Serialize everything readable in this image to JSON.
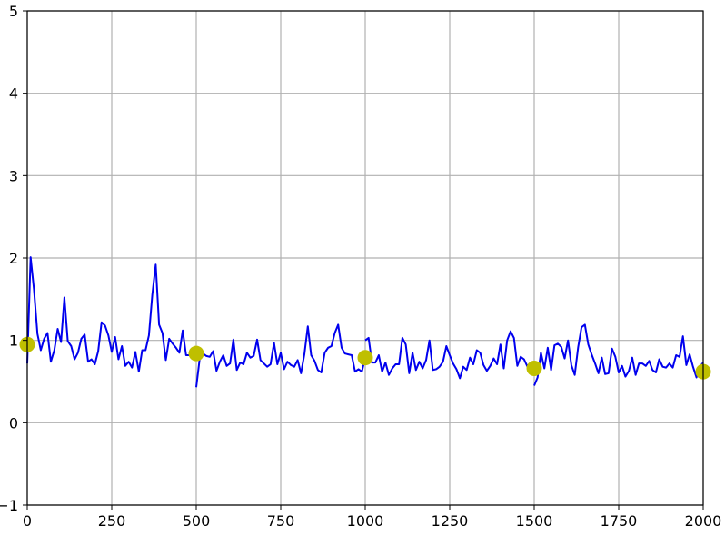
{
  "chart_data": {
    "type": "line",
    "title": "",
    "xlabel": "",
    "ylabel": "",
    "xlim": [
      0,
      2000
    ],
    "ylim": [
      -1,
      5
    ],
    "grid": true,
    "x_ticks": [
      "0",
      "250",
      "500",
      "750",
      "1000",
      "1250",
      "1500",
      "1750",
      "2000"
    ],
    "y_ticks": [
      "−1",
      "0",
      "1",
      "2",
      "3",
      "4",
      "5"
    ],
    "line_color": "#0000ee",
    "marker_color": "#bfbf00",
    "series": [
      {
        "x": [
          0,
          10,
          20,
          30,
          40,
          50,
          60,
          70,
          80,
          90,
          100,
          110,
          120,
          130,
          140,
          150,
          160,
          170,
          180,
          190,
          200,
          210,
          220,
          230,
          240,
          250,
          260,
          270,
          280,
          290,
          300,
          310,
          320,
          330,
          340,
          350,
          360,
          370,
          380,
          390,
          400,
          410,
          420,
          430,
          440,
          450,
          460,
          470,
          480,
          490,
          500
        ],
        "y": [
          0.72,
          2.01,
          1.62,
          1.08,
          0.88,
          1.02,
          1.09,
          0.74,
          0.88,
          1.14,
          0.98,
          1.52,
          0.99,
          0.93,
          0.77,
          0.85,
          1.02,
          1.07,
          0.74,
          0.77,
          0.71,
          0.87,
          1.22,
          1.18,
          1.06,
          0.86,
          1.04,
          0.77,
          0.93,
          0.69,
          0.74,
          0.67,
          0.86,
          0.62,
          0.88,
          0.88,
          1.06,
          1.55,
          1.92,
          1.19,
          1.09,
          0.76,
          1.02,
          0.96,
          0.91,
          0.85,
          1.12,
          0.82,
          0.82,
          0.81,
          0.81
        ]
      },
      {
        "x": [
          500,
          510,
          520,
          530,
          540,
          550,
          560,
          570,
          580,
          590,
          600,
          610,
          620,
          630,
          640,
          650,
          660,
          670,
          680,
          690,
          700,
          710,
          720,
          730,
          740,
          750,
          760,
          770,
          780,
          790,
          800,
          810,
          820,
          830,
          840,
          850,
          860,
          870,
          880,
          890,
          900,
          910,
          920,
          930,
          940,
          950,
          960,
          970,
          980,
          990,
          1000
        ],
        "y": [
          0.43,
          0.77,
          0.84,
          0.81,
          0.8,
          0.87,
          0.63,
          0.74,
          0.82,
          0.69,
          0.72,
          1.01,
          0.64,
          0.73,
          0.71,
          0.85,
          0.79,
          0.81,
          1.01,
          0.76,
          0.72,
          0.68,
          0.71,
          0.97,
          0.71,
          0.85,
          0.65,
          0.74,
          0.7,
          0.68,
          0.76,
          0.6,
          0.83,
          1.17,
          0.82,
          0.75,
          0.64,
          0.61,
          0.85,
          0.91,
          0.93,
          1.09,
          1.19,
          0.91,
          0.84,
          0.83,
          0.82,
          0.62,
          0.65,
          0.62,
          0.79
        ]
      },
      {
        "x": [
          1000,
          1010,
          1020,
          1030,
          1040,
          1050,
          1060,
          1070,
          1080,
          1090,
          1100,
          1110,
          1120,
          1130,
          1140,
          1150,
          1160,
          1170,
          1180,
          1190,
          1200,
          1210,
          1220,
          1230,
          1240,
          1250,
          1260,
          1270,
          1280,
          1290,
          1300,
          1310,
          1320,
          1330,
          1340,
          1350,
          1360,
          1370,
          1380,
          1390,
          1400,
          1410,
          1420,
          1430,
          1440,
          1450,
          1460,
          1470,
          1480,
          1490,
          1500
        ],
        "y": [
          1.0,
          1.03,
          0.73,
          0.73,
          0.82,
          0.62,
          0.73,
          0.58,
          0.66,
          0.71,
          0.71,
          1.03,
          0.95,
          0.6,
          0.85,
          0.64,
          0.74,
          0.66,
          0.76,
          1.0,
          0.64,
          0.65,
          0.68,
          0.74,
          0.93,
          0.82,
          0.72,
          0.65,
          0.54,
          0.68,
          0.64,
          0.79,
          0.71,
          0.88,
          0.85,
          0.7,
          0.63,
          0.69,
          0.78,
          0.71,
          0.95,
          0.66,
          1.0,
          1.11,
          1.03,
          0.69,
          0.8,
          0.77,
          0.68,
          0.72,
          0.66
        ]
      },
      {
        "x": [
          1500,
          1510,
          1520,
          1530,
          1540,
          1550,
          1560,
          1570,
          1580,
          1590,
          1600,
          1610,
          1620,
          1630,
          1640,
          1650,
          1660,
          1670,
          1680,
          1690,
          1700,
          1710,
          1720,
          1730,
          1740,
          1750,
          1760,
          1770,
          1780,
          1790,
          1800,
          1810,
          1820,
          1830,
          1840,
          1850,
          1860,
          1870,
          1880,
          1890,
          1900,
          1910,
          1920,
          1930,
          1940,
          1950,
          1960,
          1970,
          1980,
          1990,
          2000
        ],
        "y": [
          0.45,
          0.55,
          0.85,
          0.66,
          0.91,
          0.64,
          0.94,
          0.96,
          0.92,
          0.78,
          1.0,
          0.7,
          0.58,
          0.92,
          1.16,
          1.19,
          0.95,
          0.83,
          0.72,
          0.6,
          0.79,
          0.59,
          0.6,
          0.9,
          0.8,
          0.61,
          0.69,
          0.56,
          0.63,
          0.79,
          0.58,
          0.72,
          0.72,
          0.69,
          0.75,
          0.64,
          0.61,
          0.77,
          0.68,
          0.67,
          0.72,
          0.67,
          0.82,
          0.8,
          1.05,
          0.7,
          0.83,
          0.68,
          0.55,
          0.68,
          0.73
        ]
      }
    ],
    "markers": {
      "x": [
        0,
        500,
        1000,
        1500,
        2000
      ],
      "y": [
        0.95,
        0.84,
        0.79,
        0.66,
        0.62
      ]
    }
  }
}
